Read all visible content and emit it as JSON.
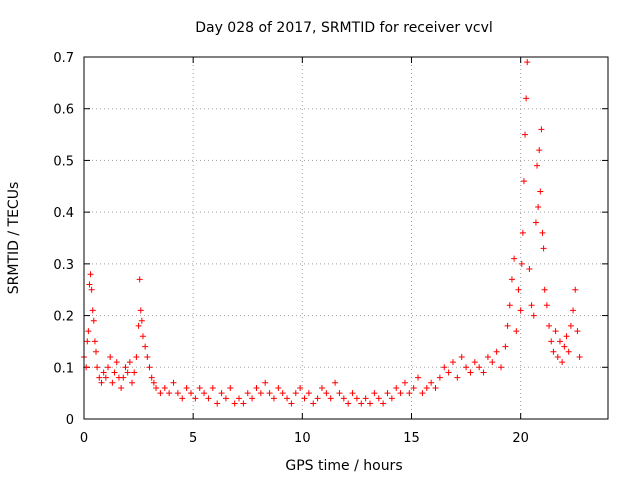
{
  "chart_data": {
    "type": "scatter",
    "title": "Day 028 of 2017, SRMTID for receiver vcvl",
    "xlabel": "GPS time / hours",
    "ylabel": "SRMTID / TECUs",
    "xlim": [
      0,
      24
    ],
    "ylim": [
      0,
      0.7
    ],
    "xticks": [
      0,
      5,
      10,
      15,
      20
    ],
    "yticks": [
      0,
      0.1,
      0.2,
      0.3,
      0.4,
      0.5,
      0.6,
      0.7
    ],
    "xtick_labels": [
      "0",
      "5",
      "10",
      "15",
      "20"
    ],
    "ytick_labels": [
      "0",
      "0.1",
      "0.2",
      "0.3",
      "0.4",
      "0.5",
      "0.6",
      "0.7"
    ],
    "grid": true,
    "marker": "+",
    "marker_color": "#ff0000",
    "series": [
      {
        "name": "SRMTID",
        "color": "#ff0000",
        "x": [
          0.0,
          0.1,
          0.15,
          0.2,
          0.25,
          0.3,
          0.35,
          0.4,
          0.45,
          0.5,
          0.55,
          0.6,
          0.7,
          0.8,
          0.9,
          1.0,
          1.1,
          1.2,
          1.3,
          1.4,
          1.5,
          1.6,
          1.7,
          1.8,
          1.9,
          2.0,
          2.1,
          2.2,
          2.3,
          2.4,
          2.5,
          2.55,
          2.6,
          2.65,
          2.7,
          2.8,
          2.9,
          3.0,
          3.1,
          3.2,
          3.3,
          3.5,
          3.7,
          3.9,
          4.1,
          4.3,
          4.5,
          4.7,
          4.9,
          5.1,
          5.3,
          5.5,
          5.7,
          5.9,
          6.1,
          6.3,
          6.5,
          6.7,
          6.9,
          7.1,
          7.3,
          7.5,
          7.7,
          7.9,
          8.1,
          8.3,
          8.5,
          8.7,
          8.9,
          9.1,
          9.3,
          9.5,
          9.7,
          9.9,
          10.1,
          10.3,
          10.5,
          10.7,
          10.9,
          11.1,
          11.3,
          11.5,
          11.7,
          11.9,
          12.1,
          12.3,
          12.5,
          12.7,
          12.9,
          13.1,
          13.3,
          13.5,
          13.7,
          13.9,
          14.1,
          14.3,
          14.5,
          14.7,
          14.9,
          15.1,
          15.3,
          15.5,
          15.7,
          15.9,
          16.1,
          16.3,
          16.5,
          16.7,
          16.9,
          17.1,
          17.3,
          17.5,
          17.7,
          17.9,
          18.1,
          18.3,
          18.5,
          18.7,
          18.9,
          19.1,
          19.3,
          19.4,
          19.5,
          19.6,
          19.7,
          19.8,
          19.9,
          20.0,
          20.05,
          20.1,
          20.15,
          20.2,
          20.25,
          20.3,
          20.4,
          20.5,
          20.6,
          20.7,
          20.75,
          20.8,
          20.85,
          20.9,
          20.95,
          21.0,
          21.05,
          21.1,
          21.2,
          21.3,
          21.4,
          21.5,
          21.6,
          21.7,
          21.8,
          21.9,
          22.0,
          22.1,
          22.2,
          22.3,
          22.4,
          22.5,
          22.6,
          22.7
        ],
        "y": [
          0.12,
          0.1,
          0.15,
          0.17,
          0.26,
          0.28,
          0.25,
          0.21,
          0.19,
          0.15,
          0.13,
          0.1,
          0.08,
          0.07,
          0.09,
          0.08,
          0.1,
          0.12,
          0.07,
          0.09,
          0.11,
          0.08,
          0.06,
          0.08,
          0.1,
          0.09,
          0.11,
          0.07,
          0.09,
          0.12,
          0.18,
          0.27,
          0.21,
          0.19,
          0.16,
          0.14,
          0.12,
          0.1,
          0.08,
          0.07,
          0.06,
          0.05,
          0.06,
          0.05,
          0.07,
          0.05,
          0.04,
          0.06,
          0.05,
          0.04,
          0.06,
          0.05,
          0.04,
          0.06,
          0.03,
          0.05,
          0.04,
          0.06,
          0.03,
          0.04,
          0.03,
          0.05,
          0.04,
          0.06,
          0.05,
          0.07,
          0.05,
          0.04,
          0.06,
          0.05,
          0.04,
          0.03,
          0.05,
          0.06,
          0.04,
          0.05,
          0.03,
          0.04,
          0.06,
          0.05,
          0.04,
          0.07,
          0.05,
          0.04,
          0.03,
          0.05,
          0.04,
          0.03,
          0.04,
          0.03,
          0.05,
          0.04,
          0.03,
          0.05,
          0.04,
          0.06,
          0.05,
          0.07,
          0.05,
          0.06,
          0.08,
          0.05,
          0.06,
          0.07,
          0.06,
          0.08,
          0.1,
          0.09,
          0.11,
          0.08,
          0.12,
          0.1,
          0.09,
          0.11,
          0.1,
          0.09,
          0.12,
          0.11,
          0.13,
          0.1,
          0.14,
          0.18,
          0.22,
          0.27,
          0.31,
          0.17,
          0.25,
          0.21,
          0.3,
          0.36,
          0.46,
          0.55,
          0.62,
          0.69,
          0.29,
          0.22,
          0.2,
          0.38,
          0.49,
          0.41,
          0.52,
          0.44,
          0.56,
          0.36,
          0.33,
          0.25,
          0.22,
          0.18,
          0.15,
          0.13,
          0.17,
          0.12,
          0.15,
          0.11,
          0.14,
          0.16,
          0.13,
          0.18,
          0.21,
          0.25,
          0.17,
          0.12
        ]
      }
    ]
  }
}
